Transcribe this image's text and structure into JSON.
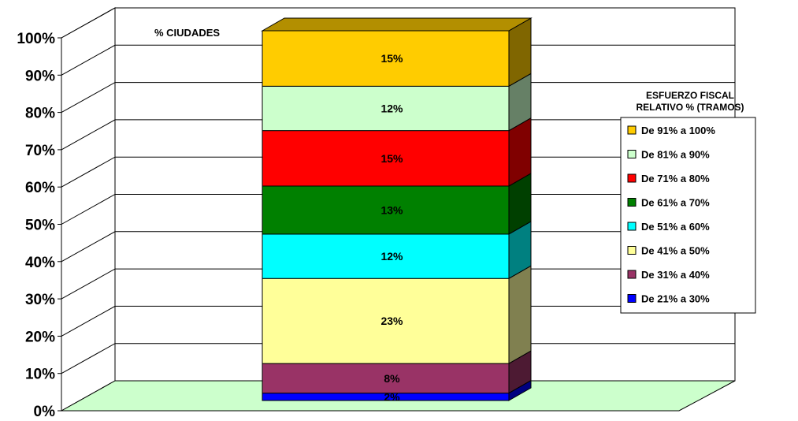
{
  "chart_data": {
    "type": "bar",
    "stacked": true,
    "stacked_percent": true,
    "three_d": true,
    "title": "% CIUDADES",
    "xlabel": "",
    "ylabel": "",
    "ylim": [
      0,
      100
    ],
    "yticks": [
      "0%",
      "10%",
      "20%",
      "30%",
      "40%",
      "50%",
      "60%",
      "70%",
      "80%",
      "90%",
      "100%"
    ],
    "grid": true,
    "legend": {
      "position": "right",
      "title_lines": [
        "ESFUERZO FISCAL",
        "RELATIVO % (TRAMOS)"
      ]
    },
    "series": [
      {
        "name": "De 21% a 30%",
        "value": 2,
        "label": "2%",
        "color": "#0000ff",
        "side_color": "#000080"
      },
      {
        "name": "De 31% a 40%",
        "value": 8,
        "label": "8%",
        "color": "#993366",
        "side_color": "#4d1a33"
      },
      {
        "name": "De 41% a 50%",
        "value": 23,
        "label": "23%",
        "color": "#ffff99",
        "side_color": "#808050"
      },
      {
        "name": "De 51% a 60%",
        "value": 12,
        "label": "12%",
        "color": "#00ffff",
        "side_color": "#008080"
      },
      {
        "name": "De 61% a 70%",
        "value": 13,
        "label": "13%",
        "color": "#008000",
        "side_color": "#004000"
      },
      {
        "name": "De 71% a 80%",
        "value": 15,
        "label": "15%",
        "color": "#ff0000",
        "side_color": "#800000"
      },
      {
        "name": "De 81% a 90%",
        "value": 12,
        "label": "12%",
        "color": "#ccffcc",
        "side_color": "#668066"
      },
      {
        "name": "De 91% a 100%",
        "value": 15,
        "label": "15%",
        "color": "#ffcc00",
        "side_color": "#806600"
      }
    ],
    "floor_color": "#ccffcc"
  }
}
